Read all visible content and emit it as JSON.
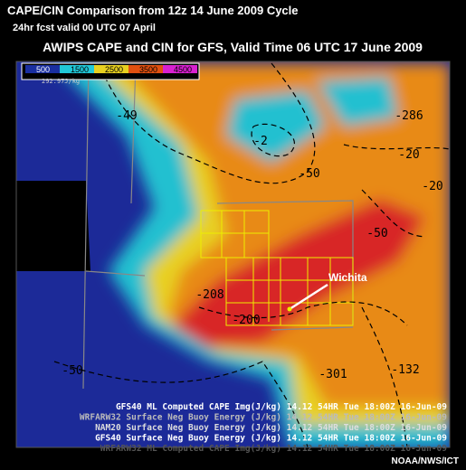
{
  "header": {
    "title": "CAPE/CIN Comparison from 12z 14 June 2009 Cycle",
    "subtitle": "24hr fcst valid 00 UTC 07 April"
  },
  "map": {
    "title": "AWIPS CAPE and CIN for GFS, Valid Time 06 UTC 17 June 2009",
    "legend": {
      "labels": [
        "500",
        "1500",
        "2500",
        "3500",
        "4500"
      ],
      "colors": [
        "#1a2fa0",
        "#20c8d8",
        "#e8d020",
        "#e05010",
        "#d820d0"
      ],
      "units": "292.97J/kg"
    },
    "contour_labels": [
      "-49",
      "-2",
      "-286",
      "-50",
      "-20",
      "-50",
      "-20",
      "-208",
      "-200",
      "-50",
      "-301",
      "-132"
    ],
    "city": "Wichita",
    "product_lines": [
      "GFS40 ML Computed CAPE Img(J/kg)  14.12  54HR Tue 18:00Z 16-Jun-09",
      "WRFARW32 Surface Neg Buoy Energy (J/kg)  14.12  54HR Tue 18:00Z 16-Jun-09",
      "NAM20 Surface Neg Buoy Energy (J/kg)  14.12  54HR Tue 18:00Z 16-Jun-09",
      "GFS40 Surface Neg Buoy Energy (J/kg)  14.12  54HR Tue 18:00Z 16-Jun-09",
      "WRFARW32 ML Computed CAPE Img(J/kg)  14.12  54HR Tue 18:00Z 16-Jun-09"
    ]
  },
  "credit": "NOAA/NWS/ICT"
}
